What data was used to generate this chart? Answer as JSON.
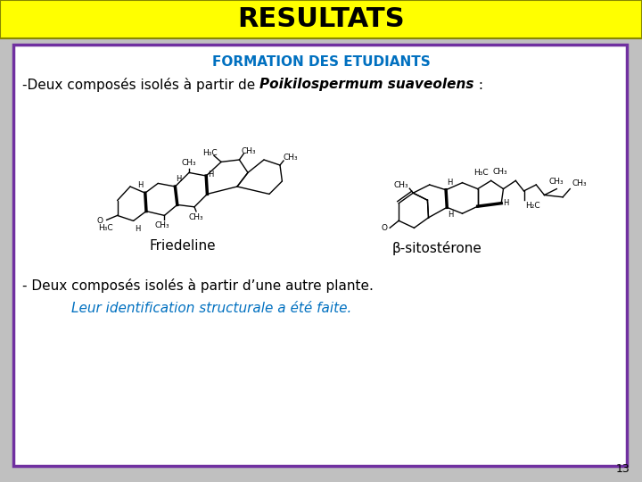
{
  "title": "RESULTATS",
  "title_bg": "#ffff00",
  "title_color": "#000000",
  "title_fontsize": 22,
  "title_fontweight": "bold",
  "subtitle": "FORMATION DES ETUDIANTS",
  "subtitle_color": "#0070c0",
  "subtitle_fontsize": 11,
  "subtitle_fontweight": "bold",
  "line1_plain": "-Deux composés isolés à partir de ",
  "line1_italic": "Poikilospermum suaveolens",
  "line1_plain2": " :",
  "line1_fontsize": 11,
  "compound1_label": "Friedeline",
  "compound2_label": "β-sitostérone",
  "compound_label_fontsize": 11,
  "line2": "- Deux composés isolés à partir d’une autre plante.",
  "line2_fontsize": 11,
  "line3": "Leur identification structurale a été faite.",
  "line3_color": "#0070c0",
  "line3_fontsize": 11,
  "line3_italic": true,
  "box_border_color": "#7030a0",
  "box_bg": "#ffffff",
  "fig_bg": "#c0c0c0",
  "page_number": "13",
  "page_number_fontsize": 9
}
